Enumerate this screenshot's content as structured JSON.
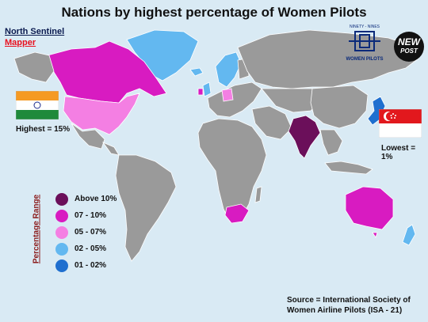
{
  "title": "Nations by highest percentage of Women Pilots",
  "credits": {
    "line1": "North Sentinel",
    "line2": "Mapper"
  },
  "highest": {
    "label": "Highest = 15%",
    "country": "India"
  },
  "lowest": {
    "label": "Lowest = 1%",
    "country": "Singapore"
  },
  "legend": {
    "title": "Percentage Range",
    "items": [
      {
        "label": "Above 10%",
        "color": "#6b0f5a"
      },
      {
        "label": "07 - 10%",
        "color": "#d81bc1"
      },
      {
        "label": "05 - 07%",
        "color": "#f47fe3"
      },
      {
        "label": "02 - 05%",
        "color": "#63b8f0"
      },
      {
        "label": "01 - 02%",
        "color": "#1f6fcf"
      }
    ]
  },
  "source": "Source = International Society of Women Airline Pilots (ISA - 21)",
  "logos": {
    "nw_top": "NINETY - NINES",
    "nw_bottom": "WOMEN PILOTS",
    "np_line1": "NEW",
    "np_line2": "POST"
  },
  "colors": {
    "ocean": "#d9eaf4",
    "land": "#9a9a9a",
    "border": "#ffffff"
  }
}
